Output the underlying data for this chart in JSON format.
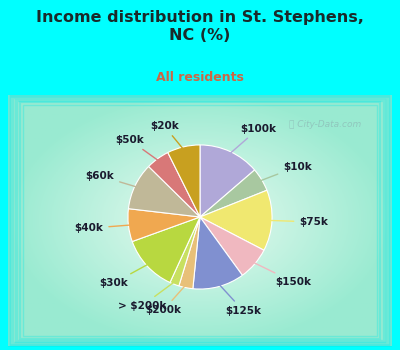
{
  "title": "Income distribution in St. Stephens,\nNC (%)",
  "subtitle": "All residents",
  "title_color": "#1a2a2a",
  "subtitle_color": "#cc6644",
  "bg_top_color": "#00ffff",
  "bg_chart_color": "#c8ede0",
  "labels": [
    "$100k",
    "$10k",
    "$75k",
    "$150k",
    "$125k",
    "$200k",
    "> $200k",
    "$30k",
    "$40k",
    "$60k",
    "$50k",
    "$20k"
  ],
  "values": [
    13,
    5,
    13,
    7,
    11,
    3,
    2,
    12,
    7,
    10,
    5,
    7
  ],
  "colors": [
    "#b0a8d8",
    "#a8c8a0",
    "#f0e870",
    "#f0b8c0",
    "#8090d0",
    "#e8c078",
    "#c8e060",
    "#b8d840",
    "#f0a850",
    "#c0b898",
    "#d87878",
    "#c8a020"
  ],
  "label_fontsize": 7.5,
  "watermark": "ⓘ City-Data.com",
  "title_fontsize": 11.5,
  "subtitle_fontsize": 9
}
